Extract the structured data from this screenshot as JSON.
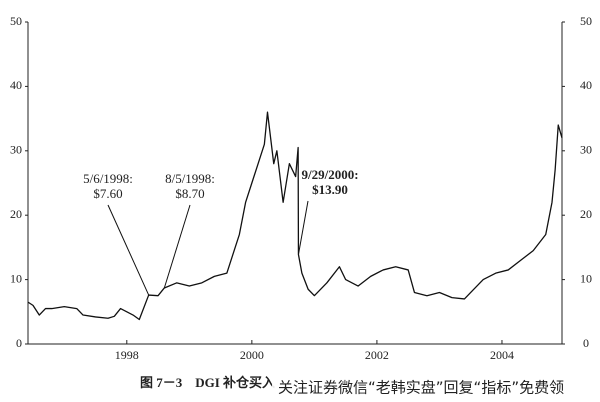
{
  "chart_data": {
    "type": "line",
    "caption": "图 7－3　DGI 补仓买入",
    "watermark": "关注证券微信“老韩实盘”回复“指标”免费领",
    "x": [
      1996.42,
      1996.5,
      1996.6,
      1996.7,
      1996.8,
      1997.0,
      1997.2,
      1997.3,
      1997.5,
      1997.7,
      1997.8,
      1997.9,
      1998.0,
      1998.1,
      1998.2,
      1998.35,
      1998.5,
      1998.6,
      1998.8,
      1999.0,
      1999.2,
      1999.4,
      1999.6,
      1999.7,
      1999.8,
      1999.9,
      2000.0,
      2000.1,
      2000.2,
      2000.25,
      2000.35,
      2000.4,
      2000.5,
      2000.6,
      2000.7,
      2000.74,
      2000.745,
      2000.8,
      2000.9,
      2001.0,
      2001.2,
      2001.4,
      2001.5,
      2001.7,
      2001.9,
      2002.1,
      2002.3,
      2002.5,
      2002.6,
      2002.8,
      2003.0,
      2003.2,
      2003.4,
      2003.5,
      2003.7,
      2003.9,
      2004.1,
      2004.3,
      2004.5,
      2004.7,
      2004.8,
      2004.85,
      2004.9,
      2004.96
    ],
    "series": [
      {
        "color": "#111111",
        "values": [
          6.5,
          6,
          4.5,
          5.5,
          5.5,
          5.8,
          5.5,
          4.5,
          4.2,
          4.0,
          4.3,
          5.5,
          5.0,
          4.5,
          3.8,
          7.6,
          7.5,
          8.7,
          9.5,
          9.0,
          9.5,
          10.5,
          11,
          14,
          17,
          22,
          25,
          28,
          31,
          36,
          28,
          30,
          22,
          28,
          26,
          30.5,
          13.9,
          11,
          8.5,
          7.5,
          9.5,
          12,
          10,
          9,
          10.5,
          11.5,
          12,
          11.5,
          8,
          7.5,
          8,
          7.2,
          7,
          8,
          10,
          11,
          11.5,
          13,
          14.5,
          17,
          22,
          27,
          34,
          32
        ]
      }
    ],
    "xlim": [
      1996.42,
      2004.96
    ],
    "xticks": [
      1998,
      2000,
      2002,
      2004
    ],
    "ylim": [
      0,
      50
    ],
    "yticks": [
      0,
      10,
      20,
      30,
      40,
      50
    ],
    "y2lim": [
      0,
      50
    ],
    "y2ticks": [
      0,
      10,
      20,
      30,
      40,
      50
    ],
    "annotations": [
      {
        "date": "5/6/1998:",
        "price": "$7.60",
        "x": 1998.35,
        "y": 7.6
      },
      {
        "date": "8/5/1998:",
        "price": "$8.70",
        "x": 1998.6,
        "y": 8.7
      },
      {
        "date": "9/29/2000:",
        "price": "$13.90",
        "x": 2000.745,
        "y": 13.9
      }
    ]
  }
}
